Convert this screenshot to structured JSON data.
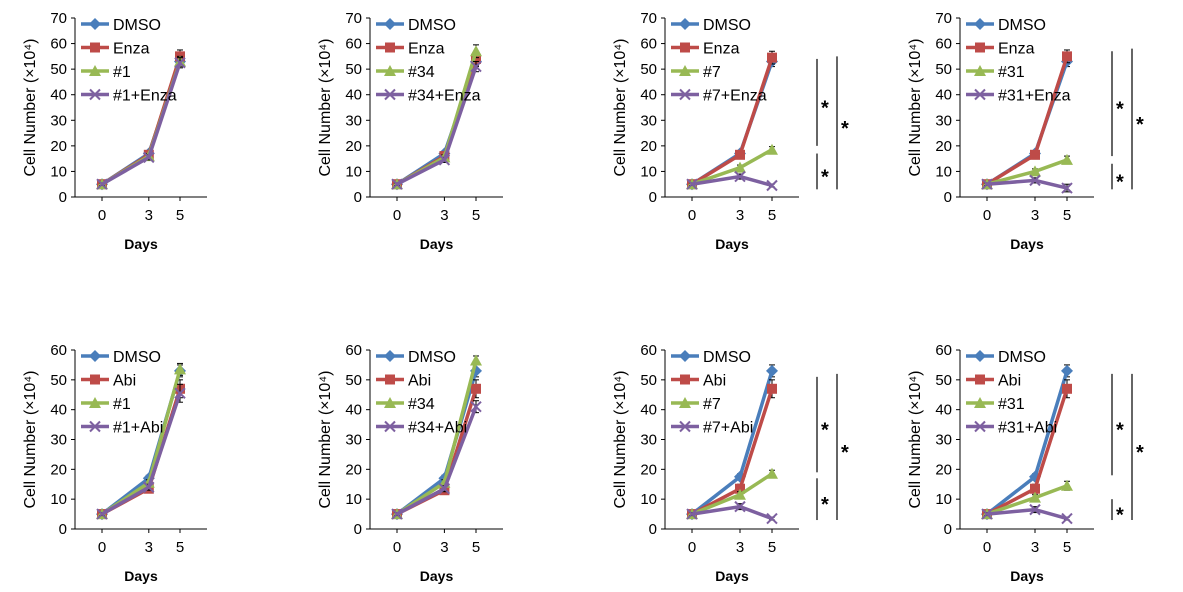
{
  "chart_data": [
    {
      "type": "line",
      "x": [
        0,
        3,
        5
      ],
      "xlabel": "Days",
      "ylabel": "Cell Number (×10⁴)",
      "ylim": [
        0,
        70
      ],
      "yticks": [
        0,
        10,
        20,
        30,
        40,
        50,
        60,
        70
      ],
      "legend_position": "top-left",
      "series": [
        {
          "name": "DMSO",
          "color": "#4a7ebb",
          "marker": "diamond",
          "values": [
            5,
            17,
            53
          ],
          "errors": [
            0.5,
            1,
            2
          ]
        },
        {
          "name": "Enza",
          "color": "#be4b48",
          "marker": "square",
          "values": [
            5,
            16.5,
            55
          ],
          "errors": [
            0.5,
            1,
            2.5
          ]
        },
        {
          "name": "#1",
          "color": "#98b954",
          "marker": "triangle",
          "values": [
            5,
            16,
            53
          ],
          "errors": [
            0.5,
            1,
            2
          ]
        },
        {
          "name": "#1+Enza",
          "color": "#7d60a0",
          "marker": "x",
          "values": [
            5,
            15.5,
            52.5
          ],
          "errors": [
            0.5,
            1,
            2
          ]
        }
      ],
      "significance": []
    },
    {
      "type": "line",
      "x": [
        0,
        3,
        5
      ],
      "xlabel": "Days",
      "ylabel": "Cell Number (×10⁴)",
      "ylim": [
        0,
        70
      ],
      "yticks": [
        0,
        10,
        20,
        30,
        40,
        50,
        60,
        70
      ],
      "legend_position": "top-left",
      "series": [
        {
          "name": "DMSO",
          "color": "#4a7ebb",
          "marker": "diamond",
          "values": [
            5,
            17,
            53
          ],
          "errors": [
            0.5,
            1,
            2
          ]
        },
        {
          "name": "Enza",
          "color": "#be4b48",
          "marker": "square",
          "values": [
            5,
            16,
            54
          ],
          "errors": [
            0.5,
            1,
            2.5
          ]
        },
        {
          "name": "#34",
          "color": "#98b954",
          "marker": "triangle",
          "values": [
            5,
            15.5,
            57
          ],
          "errors": [
            0.5,
            1,
            2.5
          ]
        },
        {
          "name": "#34+Enza",
          "color": "#7d60a0",
          "marker": "x",
          "values": [
            5,
            14.5,
            51
          ],
          "errors": [
            0.5,
            1,
            2
          ]
        }
      ],
      "significance": []
    },
    {
      "type": "line",
      "x": [
        0,
        3,
        5
      ],
      "xlabel": "Days",
      "ylabel": "Cell Number (×10⁴)",
      "ylim": [
        0,
        70
      ],
      "yticks": [
        0,
        10,
        20,
        30,
        40,
        50,
        60,
        70
      ],
      "legend_position": "top-left",
      "series": [
        {
          "name": "DMSO",
          "color": "#4a7ebb",
          "marker": "diamond",
          "values": [
            5,
            17,
            53
          ],
          "errors": [
            0.5,
            1,
            2
          ]
        },
        {
          "name": "Enza",
          "color": "#be4b48",
          "marker": "square",
          "values": [
            5,
            16.5,
            54.5
          ],
          "errors": [
            0.5,
            1,
            2.5
          ]
        },
        {
          "name": "#7",
          "color": "#98b954",
          "marker": "triangle",
          "values": [
            5,
            11.5,
            18.5
          ],
          "errors": [
            0.5,
            1,
            1.2
          ]
        },
        {
          "name": "#7+Enza",
          "color": "#7d60a0",
          "marker": "x",
          "values": [
            5,
            8,
            4.5
          ],
          "errors": [
            0.5,
            1,
            0.6
          ]
        }
      ],
      "significance": [
        {
          "label": "*",
          "from": 54,
          "to": 20,
          "level": 1
        },
        {
          "label": "*",
          "from": 17,
          "to": 3,
          "level": 1
        },
        {
          "label": "*",
          "from": 55,
          "to": 3,
          "level": 2
        }
      ]
    },
    {
      "type": "line",
      "x": [
        0,
        3,
        5
      ],
      "xlabel": "Days",
      "ylabel": "Cell Number (×10⁴)",
      "ylim": [
        0,
        70
      ],
      "yticks": [
        0,
        10,
        20,
        30,
        40,
        50,
        60,
        70
      ],
      "legend_position": "top-left",
      "series": [
        {
          "name": "DMSO",
          "color": "#4a7ebb",
          "marker": "diamond",
          "values": [
            5,
            17,
            53
          ],
          "errors": [
            0.5,
            1,
            2
          ]
        },
        {
          "name": "Enza",
          "color": "#be4b48",
          "marker": "square",
          "values": [
            5,
            16.5,
            55
          ],
          "errors": [
            0.5,
            1,
            2.5
          ]
        },
        {
          "name": "#31",
          "color": "#98b954",
          "marker": "triangle",
          "values": [
            5,
            10,
            14.5
          ],
          "errors": [
            0.5,
            1,
            1.5
          ]
        },
        {
          "name": "#31+Enza",
          "color": "#7d60a0",
          "marker": "x",
          "values": [
            5,
            6.5,
            3.5
          ],
          "errors": [
            0.5,
            1,
            1.5
          ]
        }
      ],
      "significance": [
        {
          "label": "*",
          "from": 57,
          "to": 16,
          "level": 1
        },
        {
          "label": "*",
          "from": 13,
          "to": 3,
          "level": 1
        },
        {
          "label": "*",
          "from": 58,
          "to": 3,
          "level": 2
        }
      ]
    },
    {
      "type": "line",
      "x": [
        0,
        3,
        5
      ],
      "xlabel": "Days",
      "ylabel": "Cell Number (×10⁴)",
      "ylim": [
        0,
        60
      ],
      "yticks": [
        0,
        10,
        20,
        30,
        40,
        50,
        60
      ],
      "legend_position": "top-left",
      "series": [
        {
          "name": "DMSO",
          "color": "#4a7ebb",
          "marker": "diamond",
          "values": [
            5,
            17,
            53
          ],
          "errors": [
            0.5,
            1,
            2
          ]
        },
        {
          "name": "Abi",
          "color": "#be4b48",
          "marker": "square",
          "values": [
            5,
            13.5,
            47
          ],
          "errors": [
            0.5,
            1,
            3
          ]
        },
        {
          "name": "#1",
          "color": "#98b954",
          "marker": "triangle",
          "values": [
            5,
            15.5,
            53.5
          ],
          "errors": [
            0.5,
            1,
            2
          ]
        },
        {
          "name": "#1+Abi",
          "color": "#7d60a0",
          "marker": "x",
          "values": [
            5,
            14,
            45.5
          ],
          "errors": [
            0.5,
            1,
            3
          ]
        }
      ],
      "significance": []
    },
    {
      "type": "line",
      "x": [
        0,
        3,
        5
      ],
      "xlabel": "Days",
      "ylabel": "Cell Number (×10⁴)",
      "ylim": [
        0,
        60
      ],
      "yticks": [
        0,
        10,
        20,
        30,
        40,
        50,
        60
      ],
      "legend_position": "top-left",
      "series": [
        {
          "name": "DMSO",
          "color": "#4a7ebb",
          "marker": "diamond",
          "values": [
            5,
            17,
            53
          ],
          "errors": [
            0.5,
            1,
            2
          ]
        },
        {
          "name": "Abi",
          "color": "#be4b48",
          "marker": "square",
          "values": [
            5,
            13,
            47
          ],
          "errors": [
            0.5,
            1,
            3
          ]
        },
        {
          "name": "#34",
          "color": "#98b954",
          "marker": "triangle",
          "values": [
            5,
            15.5,
            56.5
          ],
          "errors": [
            0.5,
            1,
            1.5
          ]
        },
        {
          "name": "#34+Abi",
          "color": "#7d60a0",
          "marker": "x",
          "values": [
            5,
            13.5,
            41
          ],
          "errors": [
            0.5,
            1,
            2
          ]
        }
      ],
      "significance": []
    },
    {
      "type": "line",
      "x": [
        0,
        3,
        5
      ],
      "xlabel": "Days",
      "ylabel": "Cell Number (×10⁴)",
      "ylim": [
        0,
        60
      ],
      "yticks": [
        0,
        10,
        20,
        30,
        40,
        50,
        60
      ],
      "legend_position": "top-left",
      "series": [
        {
          "name": "DMSO",
          "color": "#4a7ebb",
          "marker": "diamond",
          "values": [
            5,
            17.5,
            53
          ],
          "errors": [
            0.5,
            1,
            2
          ]
        },
        {
          "name": "Abi",
          "color": "#be4b48",
          "marker": "square",
          "values": [
            5,
            13.5,
            47
          ],
          "errors": [
            0.5,
            1.5,
            3
          ]
        },
        {
          "name": "#7",
          "color": "#98b954",
          "marker": "triangle",
          "values": [
            5,
            11.5,
            18.5
          ],
          "errors": [
            0.5,
            1,
            1.2
          ]
        },
        {
          "name": "#7+Abi",
          "color": "#7d60a0",
          "marker": "x",
          "values": [
            5,
            7.5,
            3.5
          ],
          "errors": [
            0.5,
            1,
            0.5
          ]
        }
      ],
      "significance": [
        {
          "label": "*",
          "from": 51,
          "to": 19,
          "level": 1
        },
        {
          "label": "*",
          "from": 17,
          "to": 3,
          "level": 1
        },
        {
          "label": "*",
          "from": 52,
          "to": 3,
          "level": 2
        }
      ]
    },
    {
      "type": "line",
      "x": [
        0,
        3,
        5
      ],
      "xlabel": "Days",
      "ylabel": "Cell Number (×10⁴)",
      "ylim": [
        0,
        60
      ],
      "yticks": [
        0,
        10,
        20,
        30,
        40,
        50,
        60
      ],
      "legend_position": "top-left",
      "series": [
        {
          "name": "DMSO",
          "color": "#4a7ebb",
          "marker": "diamond",
          "values": [
            5,
            17.5,
            53
          ],
          "errors": [
            0.5,
            1,
            2
          ]
        },
        {
          "name": "Abi",
          "color": "#be4b48",
          "marker": "square",
          "values": [
            5,
            13.5,
            47
          ],
          "errors": [
            0.5,
            1.5,
            3
          ]
        },
        {
          "name": "#31",
          "color": "#98b954",
          "marker": "triangle",
          "values": [
            5,
            10.5,
            14.5
          ],
          "errors": [
            0.5,
            1,
            1.5
          ]
        },
        {
          "name": "#31+Abi",
          "color": "#7d60a0",
          "marker": "x",
          "values": [
            5,
            6.5,
            3.5
          ],
          "errors": [
            0.5,
            1,
            0.5
          ]
        }
      ],
      "significance": [
        {
          "label": "*",
          "from": 52,
          "to": 18,
          "level": 1
        },
        {
          "label": "*",
          "from": 10,
          "to": 3,
          "level": 1
        },
        {
          "label": "*",
          "from": 52,
          "to": 3,
          "level": 2
        }
      ]
    }
  ]
}
